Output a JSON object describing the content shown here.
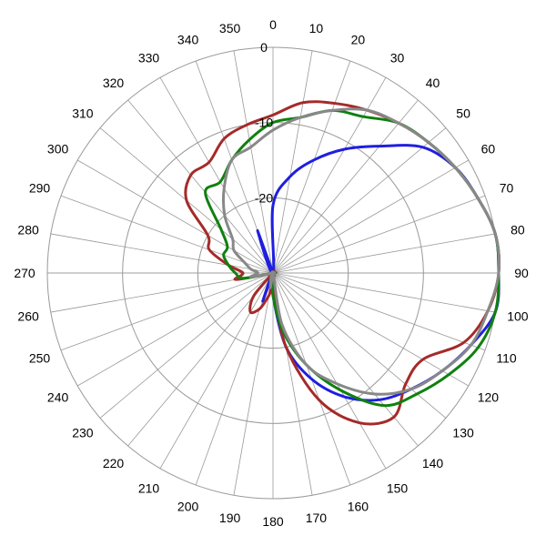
{
  "chart_data": {
    "type": "polar-line",
    "angle_unit": "degrees",
    "angle_ticks": [
      0,
      10,
      20,
      30,
      40,
      50,
      60,
      70,
      80,
      90,
      100,
      110,
      120,
      130,
      140,
      150,
      160,
      170,
      180,
      190,
      200,
      210,
      220,
      230,
      240,
      250,
      260,
      270,
      280,
      290,
      300,
      310,
      320,
      330,
      340,
      350
    ],
    "angle_labels": [
      "0",
      "10",
      "20",
      "30",
      "40",
      "50",
      "60",
      "70",
      "80",
      "90",
      "100",
      "110",
      "120",
      "130",
      "140",
      "150",
      "160",
      "170",
      "180",
      "190",
      "200",
      "210",
      "220",
      "230",
      "240",
      "250",
      "260",
      "270",
      "280",
      "290",
      "300",
      "310",
      "320",
      "330",
      "340",
      "350"
    ],
    "radial_ticks": [
      0,
      -10,
      -20
    ],
    "radial_labels": [
      "0",
      "-10",
      "-20"
    ],
    "rlim": [
      -30,
      0
    ],
    "grid": true,
    "legend": "none",
    "series": [
      {
        "color": "#1f1fe0",
        "points": [
          [
            0,
            -21
          ],
          [
            10,
            -17
          ],
          [
            20,
            -14
          ],
          [
            30,
            -11
          ],
          [
            40,
            -8
          ],
          [
            50,
            -4
          ],
          [
            60,
            -2
          ],
          [
            70,
            -1
          ],
          [
            80,
            0
          ],
          [
            90,
            0
          ],
          [
            100,
            0
          ],
          [
            110,
            -2
          ],
          [
            120,
            -4
          ],
          [
            130,
            -6
          ],
          [
            140,
            -8
          ],
          [
            150,
            -11
          ],
          [
            160,
            -15
          ],
          [
            170,
            -20
          ],
          [
            180,
            -27
          ],
          [
            190,
            -30
          ],
          [
            200,
            -26
          ],
          [
            210,
            -30
          ],
          [
            220,
            -30
          ],
          [
            230,
            -30
          ],
          [
            240,
            -30
          ],
          [
            250,
            -30
          ],
          [
            260,
            -30
          ],
          [
            270,
            -30
          ],
          [
            280,
            -30
          ],
          [
            290,
            -30
          ],
          [
            300,
            -30
          ],
          [
            310,
            -30
          ],
          [
            320,
            -30
          ],
          [
            330,
            -30
          ],
          [
            340,
            -24
          ],
          [
            350,
            -30
          ]
        ]
      },
      {
        "color": "#a52a2a",
        "points": [
          [
            0,
            -9
          ],
          [
            10,
            -7
          ],
          [
            20,
            -6
          ],
          [
            30,
            -5
          ],
          [
            40,
            -4
          ],
          [
            50,
            -3
          ],
          [
            60,
            -2
          ],
          [
            70,
            -1
          ],
          [
            80,
            0
          ],
          [
            90,
            0
          ],
          [
            100,
            -1
          ],
          [
            110,
            -3
          ],
          [
            120,
            -7
          ],
          [
            130,
            -7
          ],
          [
            140,
            -5
          ],
          [
            150,
            -7
          ],
          [
            160,
            -12
          ],
          [
            170,
            -20
          ],
          [
            180,
            -28
          ],
          [
            190,
            -27
          ],
          [
            200,
            -25
          ],
          [
            210,
            -24
          ],
          [
            220,
            -26
          ],
          [
            230,
            -30
          ],
          [
            240,
            -30
          ],
          [
            250,
            -30
          ],
          [
            260,
            -25
          ],
          [
            270,
            -26
          ],
          [
            280,
            -24
          ],
          [
            290,
            -21
          ],
          [
            300,
            -20
          ],
          [
            310,
            -15
          ],
          [
            320,
            -13
          ],
          [
            330,
            -13
          ],
          [
            340,
            -11
          ],
          [
            350,
            -10
          ]
        ]
      },
      {
        "color": "#108010",
        "points": [
          [
            0,
            -10
          ],
          [
            10,
            -9
          ],
          [
            20,
            -7
          ],
          [
            30,
            -6
          ],
          [
            40,
            -4
          ],
          [
            50,
            -3
          ],
          [
            60,
            -2
          ],
          [
            70,
            -1
          ],
          [
            80,
            0
          ],
          [
            90,
            0
          ],
          [
            100,
            0
          ],
          [
            110,
            -1
          ],
          [
            120,
            -3
          ],
          [
            130,
            -5
          ],
          [
            140,
            -7
          ],
          [
            150,
            -12
          ],
          [
            160,
            -17
          ],
          [
            170,
            -22
          ],
          [
            180,
            -27
          ],
          [
            190,
            -30
          ],
          [
            200,
            -29
          ],
          [
            210,
            -30
          ],
          [
            220,
            -30
          ],
          [
            230,
            -30
          ],
          [
            240,
            -30
          ],
          [
            250,
            -30
          ],
          [
            260,
            -26
          ],
          [
            270,
            -25
          ],
          [
            280,
            -24
          ],
          [
            290,
            -23
          ],
          [
            300,
            -23
          ],
          [
            310,
            -21
          ],
          [
            320,
            -16
          ],
          [
            330,
            -16
          ],
          [
            340,
            -14
          ],
          [
            350,
            -12
          ]
        ]
      },
      {
        "color": "#888888",
        "points": [
          [
            0,
            -11
          ],
          [
            10,
            -9
          ],
          [
            20,
            -7
          ],
          [
            30,
            -5
          ],
          [
            40,
            -4
          ],
          [
            50,
            -3
          ],
          [
            60,
            -2
          ],
          [
            70,
            -1
          ],
          [
            80,
            0
          ],
          [
            90,
            0
          ],
          [
            100,
            -1
          ],
          [
            110,
            -2
          ],
          [
            120,
            -4
          ],
          [
            130,
            -6
          ],
          [
            140,
            -9
          ],
          [
            150,
            -13
          ],
          [
            160,
            -17
          ],
          [
            170,
            -23
          ],
          [
            180,
            -30
          ],
          [
            190,
            -28
          ],
          [
            200,
            -30
          ],
          [
            210,
            -30
          ],
          [
            220,
            -30
          ],
          [
            230,
            -30
          ],
          [
            240,
            -30
          ],
          [
            250,
            -30
          ],
          [
            260,
            -27
          ],
          [
            270,
            -28
          ],
          [
            280,
            -27
          ],
          [
            290,
            -26
          ],
          [
            300,
            -24
          ],
          [
            310,
            -23
          ],
          [
            320,
            -20
          ],
          [
            330,
            -17
          ],
          [
            340,
            -14
          ],
          [
            350,
            -13
          ]
        ]
      }
    ]
  }
}
